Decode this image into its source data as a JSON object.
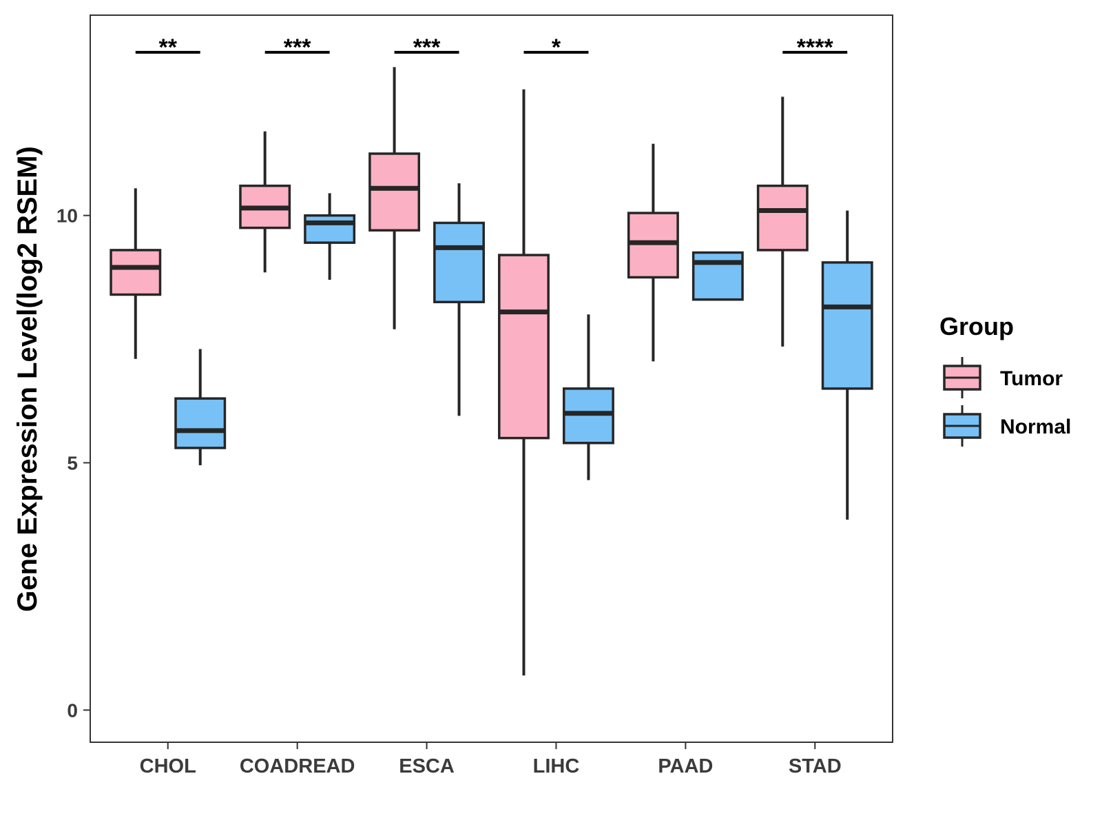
{
  "chart_data": {
    "type": "boxplot",
    "title": "",
    "xlabel": "",
    "ylabel": "Gene Expression Level(log2 RSEM)",
    "ylim": [
      -0.65,
      14.05
    ],
    "yticks": [
      0,
      5,
      10
    ],
    "categories": [
      "CHOL",
      "COADREAD",
      "ESCA",
      "LIHC",
      "PAAD",
      "STAD"
    ],
    "legend": {
      "title": "Group",
      "position": "right"
    },
    "series": [
      {
        "name": "Tumor",
        "color": "#FBB1C3",
        "boxes": [
          {
            "whisker_low": 7.1,
            "q1": 8.4,
            "median": 8.95,
            "q3": 9.3,
            "whisker_high": 10.55
          },
          {
            "whisker_low": 8.85,
            "q1": 9.75,
            "median": 10.15,
            "q3": 10.6,
            "whisker_high": 11.7
          },
          {
            "whisker_low": 7.7,
            "q1": 9.7,
            "median": 10.55,
            "q3": 11.25,
            "whisker_high": 13.0
          },
          {
            "whisker_low": 0.7,
            "q1": 5.5,
            "median": 8.05,
            "q3": 9.2,
            "whisker_high": 12.55
          },
          {
            "whisker_low": 7.05,
            "q1": 8.75,
            "median": 9.45,
            "q3": 10.05,
            "whisker_high": 11.45
          },
          {
            "whisker_low": 7.35,
            "q1": 9.3,
            "median": 10.1,
            "q3": 10.6,
            "whisker_high": 12.4
          }
        ]
      },
      {
        "name": "Normal",
        "color": "#77C1F7",
        "boxes": [
          {
            "whisker_low": 4.95,
            "q1": 5.3,
            "median": 5.65,
            "q3": 6.3,
            "whisker_high": 7.3
          },
          {
            "whisker_low": 8.7,
            "q1": 9.45,
            "median": 9.85,
            "q3": 10.0,
            "whisker_high": 10.45
          },
          {
            "whisker_low": 5.95,
            "q1": 8.25,
            "median": 9.35,
            "q3": 9.85,
            "whisker_high": 10.65
          },
          {
            "whisker_low": 4.65,
            "q1": 5.4,
            "median": 6.0,
            "q3": 6.5,
            "whisker_high": 8.0
          },
          {
            "whisker_low": 8.3,
            "q1": 8.3,
            "median": 9.05,
            "q3": 9.25,
            "whisker_high": 9.25
          },
          {
            "whisker_low": 3.85,
            "q1": 6.5,
            "median": 8.15,
            "q3": 9.05,
            "whisker_high": 10.1
          }
        ]
      }
    ],
    "significance": [
      "**",
      "***",
      "***",
      "*",
      "",
      "****"
    ],
    "significance_y": 13.3
  }
}
